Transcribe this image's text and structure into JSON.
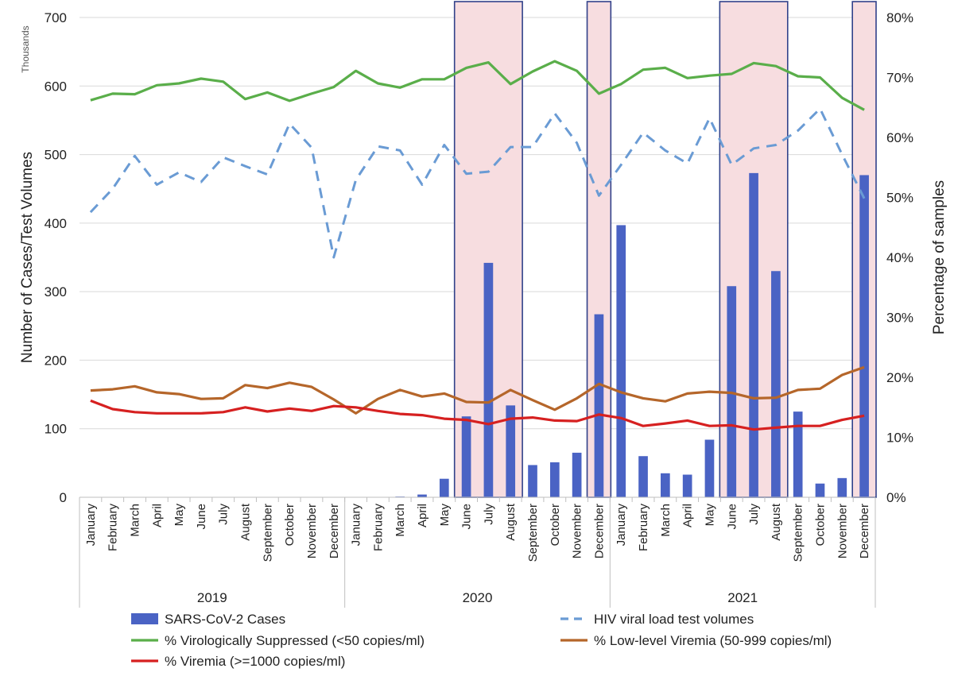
{
  "chart_data": {
    "type": "combo",
    "title": "",
    "y_left": {
      "label": "Number of Cases/Test Volumes",
      "unit_note": "Thousands",
      "range": [
        0,
        700
      ],
      "ticks": [
        0,
        100,
        200,
        300,
        400,
        500,
        600,
        700
      ]
    },
    "y_right": {
      "label": "Percentage of samples",
      "range": [
        0,
        80
      ],
      "ticks": [
        "0%",
        "10%",
        "20%",
        "30%",
        "40%",
        "50%",
        "60%",
        "70%",
        "80%"
      ],
      "tick_values": [
        0,
        10,
        20,
        30,
        40,
        50,
        60,
        70,
        80
      ]
    },
    "months": [
      "January",
      "February",
      "March",
      "April",
      "May",
      "June",
      "July",
      "August",
      "September",
      "October",
      "November",
      "December",
      "January",
      "February",
      "March",
      "April",
      "May",
      "June",
      "July",
      "August",
      "September",
      "October",
      "November",
      "December",
      "January",
      "February",
      "March",
      "April",
      "May",
      "June",
      "July",
      "August",
      "September",
      "October",
      "November",
      "December"
    ],
    "years": [
      {
        "label": "2019",
        "start": 0,
        "end": 11
      },
      {
        "label": "2020",
        "start": 12,
        "end": 23
      },
      {
        "label": "2021",
        "start": 24,
        "end": 35
      }
    ],
    "highlight_ranges": [
      [
        17,
        19
      ],
      [
        23,
        23
      ],
      [
        29,
        31
      ],
      [
        35,
        35
      ]
    ],
    "series": [
      {
        "name": "SARS-CoV-2 Cases",
        "type": "bar",
        "axis": "left",
        "color": "#4a63c4",
        "values": [
          0,
          0,
          0,
          0,
          0,
          0,
          0,
          0,
          0,
          0,
          0,
          0,
          0,
          0,
          1,
          4,
          27,
          118,
          342,
          134,
          47,
          51,
          65,
          267,
          397,
          60,
          35,
          33,
          84,
          308,
          473,
          330,
          125,
          20,
          28,
          470
        ]
      },
      {
        "name": "HIV viral load test volumes",
        "type": "line",
        "style": "dashed",
        "axis": "left",
        "color": "#6a9bd4",
        "values": [
          416,
          450,
          498,
          456,
          474,
          460,
          496,
          483,
          471,
          545,
          510,
          350,
          463,
          512,
          506,
          456,
          514,
          472,
          475,
          511,
          511,
          560,
          517,
          440,
          485,
          532,
          506,
          487,
          553,
          485,
          509,
          514,
          535,
          567,
          500,
          436
        ]
      },
      {
        "name": "% Virologically Suppressed (<50 copies/ml)",
        "type": "line",
        "axis": "right",
        "color": "#5aae4a",
        "values": [
          66.2,
          67.3,
          67.2,
          68.7,
          69.0,
          69.8,
          69.3,
          66.4,
          67.5,
          66.1,
          67.3,
          68.4,
          71.1,
          69.0,
          68.3,
          69.7,
          69.7,
          71.6,
          72.5,
          68.9,
          71.0,
          72.7,
          71.1,
          67.3,
          68.9,
          71.3,
          71.6,
          69.9,
          70.3,
          70.6,
          72.4,
          71.9,
          70.2,
          70.0,
          66.6,
          64.6
        ]
      },
      {
        "name": "% Low-level Viremia (50-999 copies/ml)",
        "type": "line",
        "axis": "right",
        "color": "#b5662a",
        "values": [
          17.8,
          18.0,
          18.5,
          17.5,
          17.2,
          16.4,
          16.5,
          18.7,
          18.2,
          19.1,
          18.4,
          16.3,
          14.0,
          16.4,
          17.9,
          16.8,
          17.3,
          15.9,
          15.8,
          17.9,
          16.2,
          14.6,
          16.5,
          18.9,
          17.5,
          16.5,
          16.0,
          17.3,
          17.6,
          17.4,
          16.5,
          16.6,
          17.9,
          18.1,
          20.4,
          21.7
        ]
      },
      {
        "name": "% Viremia (>=1000 copies/ml)",
        "type": "line",
        "axis": "right",
        "color": "#d62020",
        "values": [
          16.1,
          14.7,
          14.2,
          14.0,
          14.0,
          14.0,
          14.2,
          15.0,
          14.3,
          14.8,
          14.4,
          15.2,
          15.0,
          14.4,
          13.9,
          13.7,
          13.1,
          12.9,
          12.2,
          13.1,
          13.3,
          12.8,
          12.7,
          13.8,
          13.2,
          11.9,
          12.3,
          12.8,
          11.9,
          12.0,
          11.3,
          11.6,
          11.9,
          11.9,
          12.9,
          13.6
        ]
      }
    ],
    "legend": {
      "position": "bottom",
      "entries": [
        "SARS-CoV-2 Cases",
        "HIV viral load test volumes",
        "% Virologically Suppressed (<50 copies/ml)",
        "% Low-level Viremia (50-999 copies/ml)",
        "% Viremia (>=1000 copies/ml)"
      ]
    }
  }
}
